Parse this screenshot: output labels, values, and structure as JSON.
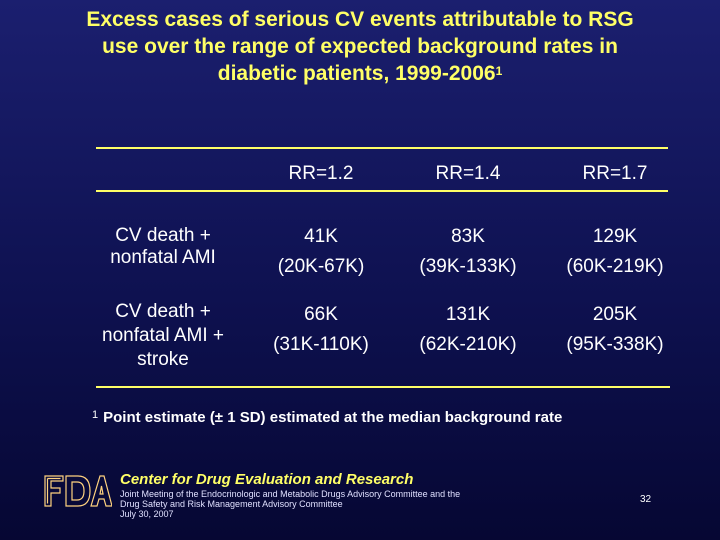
{
  "slide": {
    "title_lines": [
      "Excess cases of serious CV events attributable to RSG",
      "use over the range of expected background rates in",
      "diabetic patients, 1999-2006"
    ],
    "title_superscript": "1"
  },
  "table": {
    "columns": [
      "RR=1.2",
      "RR=1.4",
      "RR=1.7"
    ],
    "rows": [
      {
        "label_lines": [
          "CV death +",
          "nonfatal AMI"
        ],
        "cells": [
          {
            "estimate": "41K",
            "range": "(20K-67K)"
          },
          {
            "estimate": "83K",
            "range": "(39K-133K)"
          },
          {
            "estimate": "129K",
            "range": "(60K-219K)"
          }
        ]
      },
      {
        "label_lines": [
          "CV death +",
          "nonfatal AMI +",
          "stroke"
        ],
        "cells": [
          {
            "estimate": "66K",
            "range": "(31K-110K)"
          },
          {
            "estimate": "131K",
            "range": "(62K-210K)"
          },
          {
            "estimate": "205K",
            "range": "(95K-338K)"
          }
        ]
      }
    ]
  },
  "footnote": {
    "marker": "1",
    "text": "Point estimate (± 1 SD) estimated at the median background rate"
  },
  "footer": {
    "center_name": "Center for Drug Evaluation and Research",
    "meeting_lines": [
      "Joint Meeting of the Endocrinologic and Metabolic Drugs Advisory Committee and the",
      "Drug Safety and Risk Management Advisory Committee",
      "July 30, 2007"
    ],
    "page_number": "32",
    "logo_text": "FDA"
  },
  "colors": {
    "background_top": "#1b1f6f",
    "background_bottom": "#060733",
    "title": "#ffff66",
    "rules": "#ffff66",
    "body_text": "#ffffff"
  },
  "icons": {
    "logo": "fda-logo-icon"
  }
}
